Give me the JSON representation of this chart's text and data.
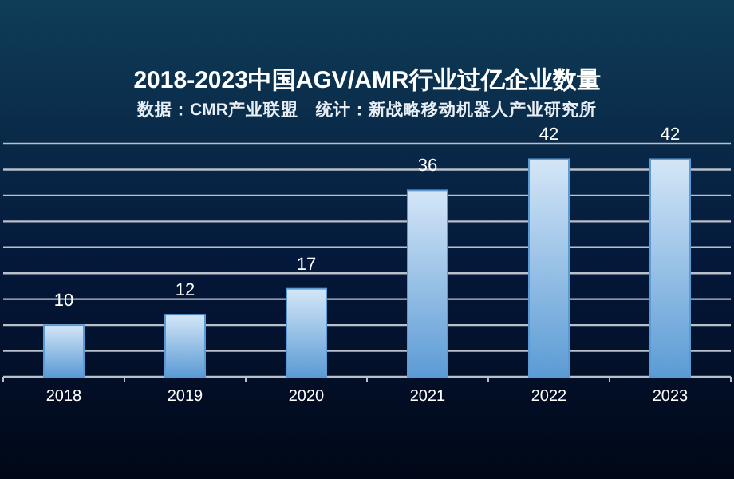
{
  "chart_data": {
    "type": "bar",
    "title": "2018-2023中国AGV/AMR行业过亿企业数量",
    "subtitle": "数据：CMR产业联盟　统计：新战略移动机器人产业研究所",
    "categories": [
      "2018",
      "2019",
      "2020",
      "2021",
      "2022",
      "2023"
    ],
    "values": [
      10,
      12,
      17,
      36,
      42,
      42
    ],
    "color": "#5b9bd5",
    "ylim": [
      0,
      45
    ],
    "yticks": [
      {
        "value": 0,
        "label": null
      },
      {
        "value": 5,
        "label": null
      },
      {
        "value": 10,
        "label": null
      },
      {
        "value": 15,
        "label": null
      },
      {
        "value": 20,
        "label": null
      },
      {
        "value": 25,
        "label": null
      },
      {
        "value": 30,
        "label": null
      },
      {
        "value": 35,
        "label": null
      },
      {
        "value": 40,
        "label": null
      },
      {
        "value": 45,
        "label": null
      }
    ],
    "grid": "y",
    "data_labels": true,
    "tick_labels": "x"
  }
}
